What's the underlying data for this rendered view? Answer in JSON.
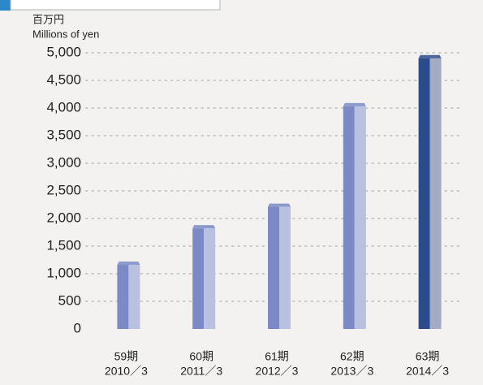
{
  "chart_data": {
    "type": "bar",
    "y_label_ja": "百万円",
    "y_label": "Millions of yen",
    "categories": [
      "59期",
      "60期",
      "61期",
      "62期",
      "63期"
    ],
    "category_dates": [
      "2010／3",
      "2011／3",
      "2012／3",
      "2013／3",
      "2014／3"
    ],
    "values": [
      1220,
      1880,
      2270,
      4090,
      4960
    ],
    "colors": [
      "#7b8ac6",
      "#7b8ac6",
      "#7b8ac6",
      "#7b8ac6",
      "#2c4b8c"
    ],
    "side_colors": [
      "#b8c1e0",
      "#b8c1e0",
      "#b8c1e0",
      "#b8c1e0",
      "#a4abc6"
    ],
    "ylim": [
      0,
      5000
    ],
    "yticks": [
      0,
      {
        "value": 500,
        "label": "500"
      },
      {
        "value": 1000,
        "label": "1,000"
      },
      {
        "value": 1500,
        "label": "1,500"
      },
      {
        "value": 2000,
        "label": "2,000"
      },
      {
        "value": 2500,
        "label": "2,500"
      },
      {
        "value": 3000,
        "label": "3,000"
      },
      {
        "value": 3500,
        "label": "3,500"
      },
      {
        "value": 4000,
        "label": "4,000"
      },
      {
        "value": 4500,
        "label": "4,500"
      },
      {
        "value": 5000,
        "label": "5,000"
      }
    ],
    "grid": true
  }
}
